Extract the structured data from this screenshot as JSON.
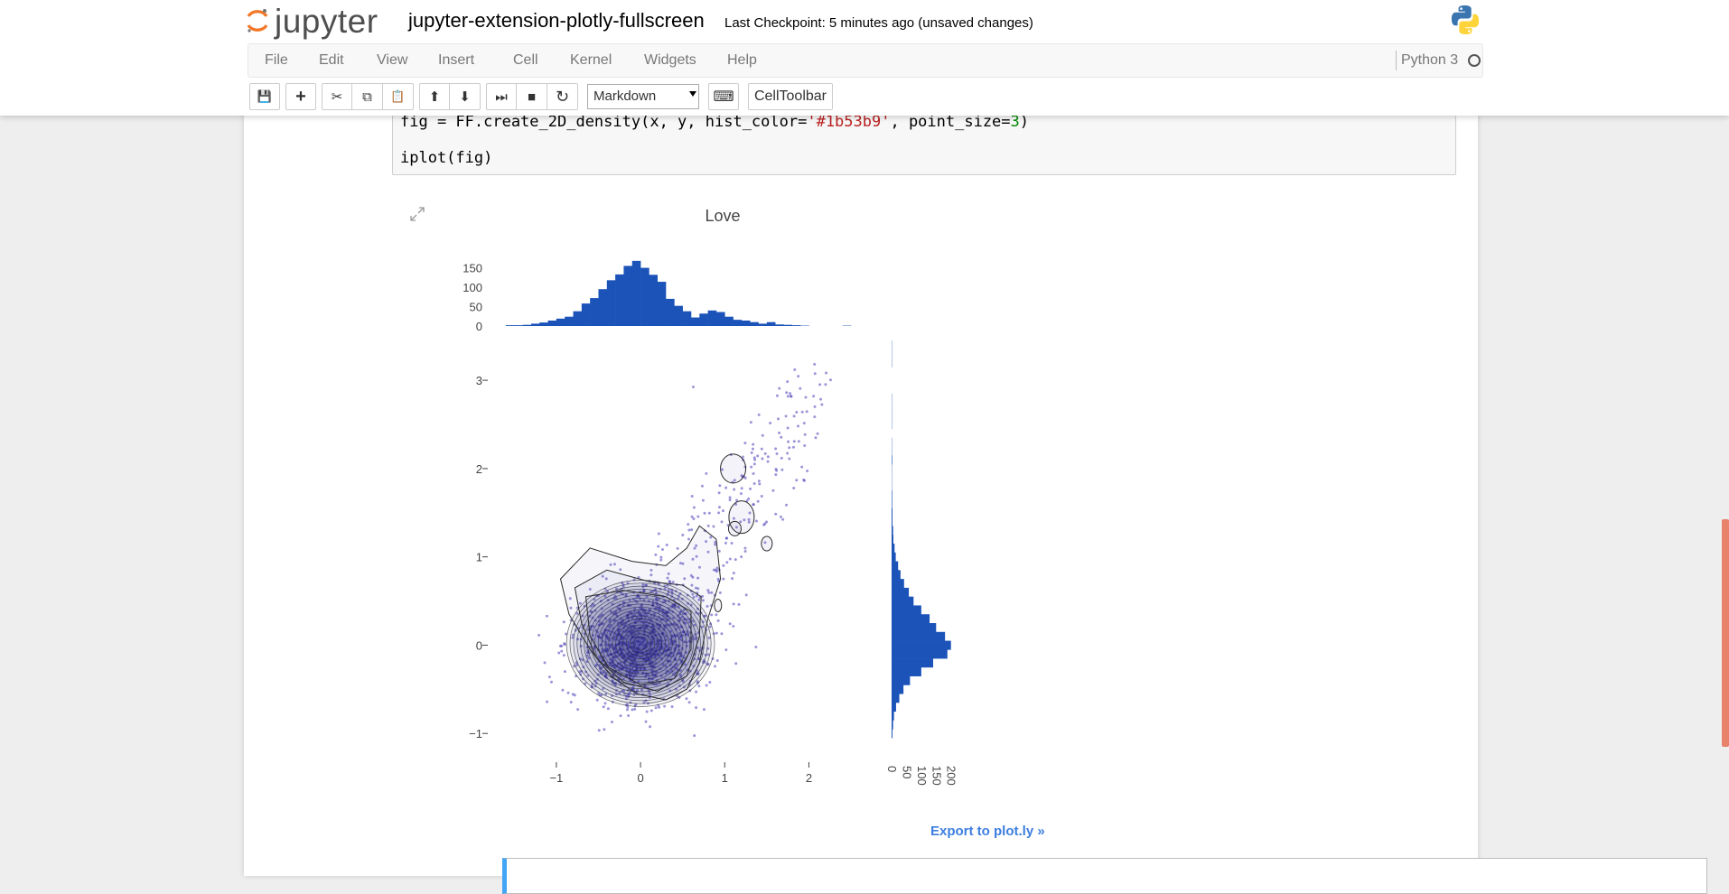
{
  "header": {
    "logo_text": "jupyter",
    "notebook_title": "jupyter-extension-plotly-fullscreen",
    "checkpoint_status": "Last Checkpoint: 5 minutes ago (unsaved changes)"
  },
  "menu": {
    "items": [
      "File",
      "Edit",
      "View",
      "Insert",
      "Cell",
      "Kernel",
      "Widgets",
      "Help"
    ],
    "kernel_name": "Python 3"
  },
  "toolbar": {
    "buttons": [
      {
        "name": "save-icon",
        "glyph": "💾"
      },
      {
        "name": "insert-cell-icon",
        "glyph": "+"
      },
      {
        "name": "cut-icon",
        "glyph": "✂"
      },
      {
        "name": "copy-icon",
        "glyph": "⧉"
      },
      {
        "name": "paste-icon",
        "glyph": "📋"
      },
      {
        "name": "move-up-icon",
        "glyph": "⬆"
      },
      {
        "name": "move-down-icon",
        "glyph": "⬇"
      },
      {
        "name": "run-icon",
        "glyph": "⏭"
      },
      {
        "name": "interrupt-icon",
        "glyph": "■"
      },
      {
        "name": "restart-icon",
        "glyph": "↻"
      }
    ],
    "cell_type": "Markdown",
    "keyboard_icon": "⌨",
    "celltoolbar_label": "CellToolbar"
  },
  "code_cell": {
    "line1_pre": "fig = FF.create_2D_density(x, y, hist_color=",
    "line1_str": "'#1b53b9'",
    "line1_mid": ", point_size=",
    "line1_num": "3",
    "line1_end": ")",
    "line2": "iplot(fig)"
  },
  "export_link": "Export to plot.ly »",
  "colors": {
    "hist_color": "#1b53b9",
    "point_color": "#4a3fb8",
    "contour_color": "#2a2a2a",
    "link_color": "#3d7ee0",
    "scroll_thumb": "#e8826a"
  },
  "chart_data": {
    "type": "scatter",
    "title": "Love",
    "xlabel": "",
    "ylabel": "",
    "x_ticks": [
      "−1",
      "0",
      "1",
      "2"
    ],
    "y_ticks": [
      "−1",
      "0",
      "1",
      "2",
      "3"
    ],
    "xlim": [
      -1.75,
      2.65
    ],
    "ylim": [
      -1.1,
      3.4
    ],
    "top_histogram": {
      "ticks": [
        "0",
        "50",
        "100",
        "150"
      ],
      "range": [
        0,
        170
      ],
      "bin_start": -1.6,
      "bin_width": 0.1,
      "counts": [
        2,
        2,
        3,
        6,
        9,
        14,
        19,
        24,
        38,
        58,
        72,
        95,
        118,
        133,
        155,
        168,
        150,
        132,
        114,
        70,
        52,
        38,
        22,
        32,
        40,
        36,
        24,
        16,
        14,
        10,
        6,
        10,
        4,
        3,
        2,
        1,
        0,
        0,
        0,
        0,
        1
      ]
    },
    "right_histogram": {
      "ticks": [
        "0",
        "50",
        "100",
        "150",
        "200"
      ],
      "range": [
        0,
        210
      ],
      "bin_start": -1.05,
      "bin_width": 0.1,
      "counts": [
        3,
        5,
        8,
        15,
        26,
        40,
        62,
        100,
        140,
        188,
        200,
        180,
        150,
        128,
        100,
        74,
        58,
        42,
        30,
        22,
        14,
        10,
        6,
        5,
        3,
        3,
        2,
        2,
        1,
        1,
        1,
        2,
        1,
        1,
        0,
        1,
        1,
        1,
        1,
        0,
        0,
        0,
        1,
        1,
        1
      ]
    }
  }
}
